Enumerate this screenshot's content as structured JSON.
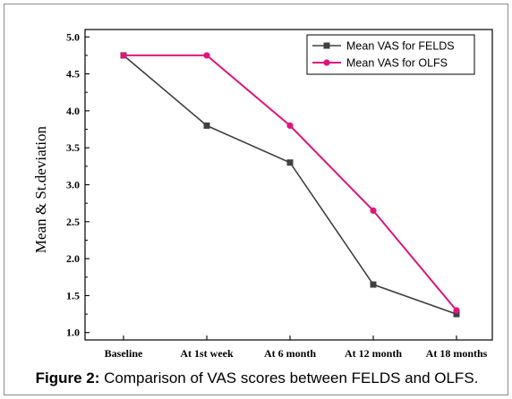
{
  "chart_data": {
    "type": "line",
    "categories": [
      "Baseline",
      "At 1st week",
      "At 6 month",
      "At 12 month",
      "At 18 months"
    ],
    "series": [
      {
        "name": "Mean VAS for FELDS",
        "values": [
          4.75,
          3.8,
          3.3,
          1.65,
          1.25
        ],
        "color": "#404040",
        "marker": "square"
      },
      {
        "name": "Mean VAS for OLFS",
        "values": [
          4.75,
          4.75,
          3.8,
          2.65,
          1.3
        ],
        "color": "#e0157a",
        "marker": "circle"
      }
    ],
    "ylabel": "Mean & St.deviation",
    "xlabel": "",
    "ylim": [
      0.9,
      5.1
    ],
    "yticks": [
      1.0,
      1.5,
      2.0,
      2.5,
      3.0,
      3.5,
      4.0,
      4.5,
      5.0
    ],
    "ytick_labels": [
      "1.0",
      "1.5",
      "2.0",
      "2.5",
      "3.0",
      "3.5",
      "4.0",
      "4.5",
      "5.0"
    ],
    "grid": false,
    "legend_position": "top-right"
  },
  "caption": {
    "label": "Figure 2:",
    "text": " Comparison of VAS scores between FELDS and OLFS."
  }
}
